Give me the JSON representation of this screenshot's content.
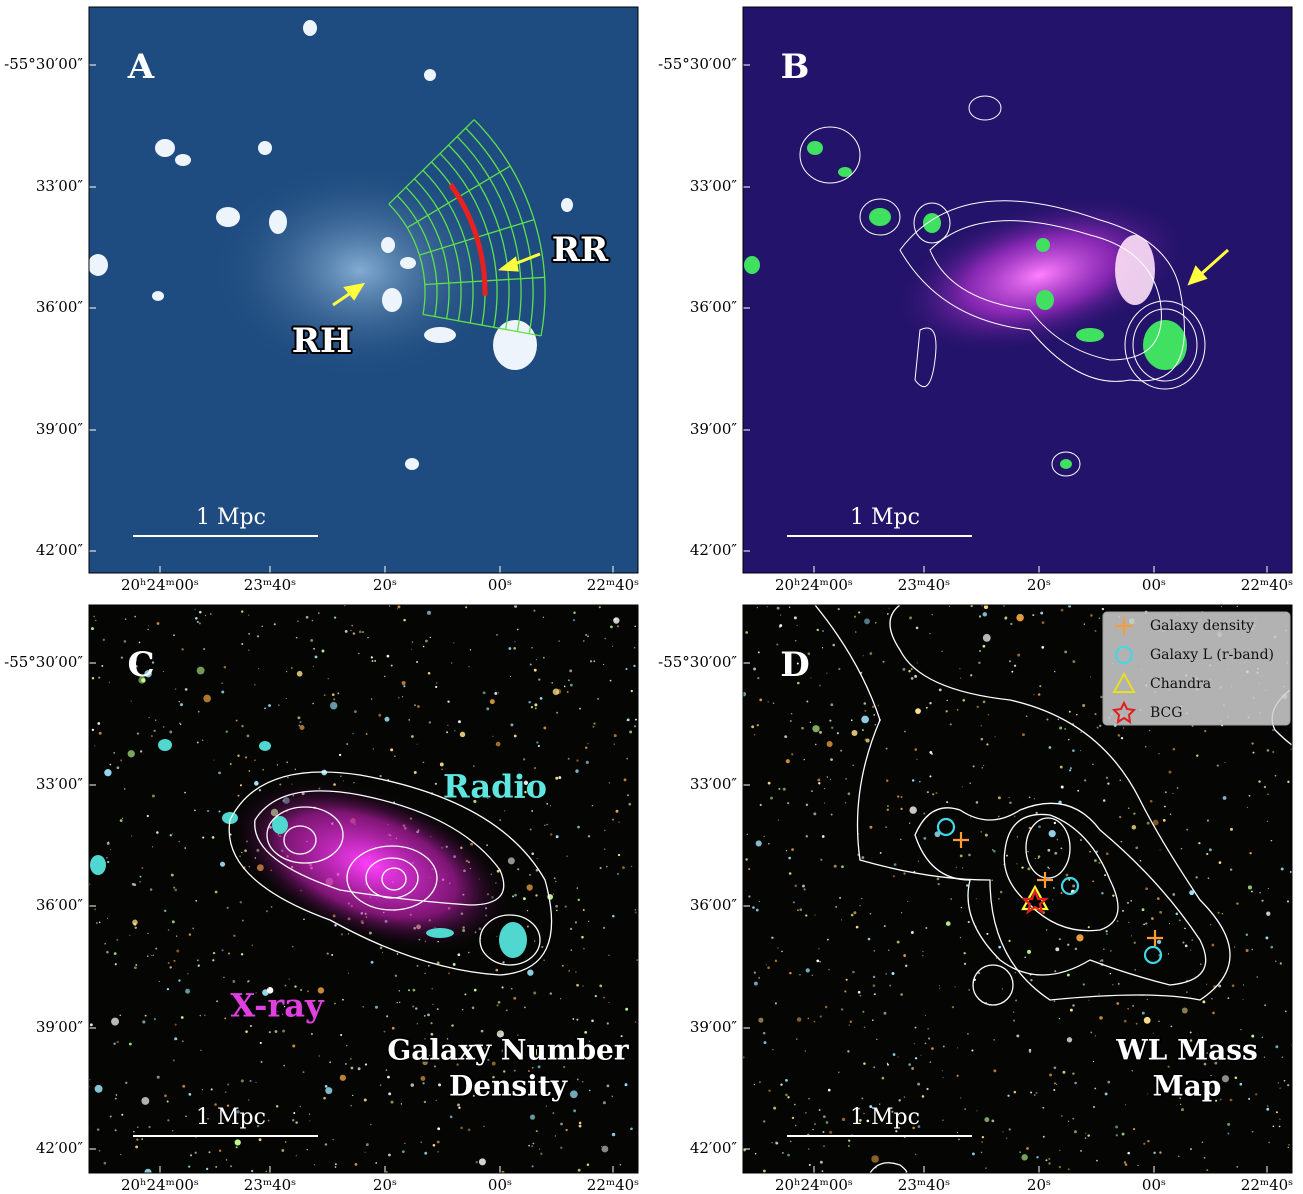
{
  "axes": {
    "dec_labels": [
      "-55°30′00″",
      "33′00″",
      "36′00″",
      "39′00″",
      "42′00″"
    ],
    "ra_labels": [
      "20ʰ24ᵐ00ˢ",
      "23ᵐ40ˢ",
      "20ˢ",
      "00ˢ",
      "22ᵐ40ˢ"
    ]
  },
  "scale_bar": "1 Mpc",
  "panels": [
    {
      "label": "A",
      "annotations": [
        "RH",
        "RR"
      ]
    },
    {
      "label": "B"
    },
    {
      "label": "C",
      "annotations": [
        "Radio",
        "X-ray"
      ],
      "overlay_title": [
        "Galaxy Number",
        "Density"
      ]
    },
    {
      "label": "D",
      "overlay_title": [
        "WL Mass",
        "Map"
      ],
      "legend": [
        "Galaxy density",
        "Galaxy L (r-band)",
        "Chandra",
        "BCG"
      ]
    }
  ]
}
